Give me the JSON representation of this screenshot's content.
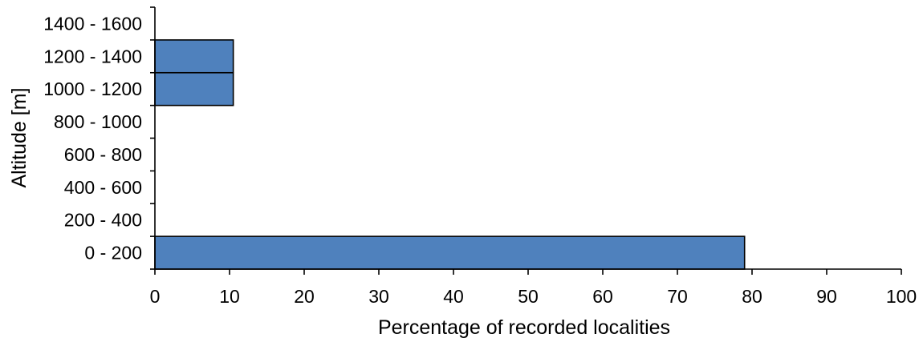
{
  "chart_data": {
    "type": "bar",
    "orientation": "horizontal",
    "categories": [
      "0 - 200",
      "200 - 400",
      "400 - 600",
      "600 - 800",
      "800 - 1000",
      "1000 - 1200",
      "1200 - 1400",
      "1400 - 1600"
    ],
    "values": [
      79,
      0,
      0,
      0,
      0,
      10.5,
      10.5,
      0
    ],
    "xlabel": "Percentage of recorded localities",
    "ylabel": "Altitude [m]",
    "xlim": [
      0,
      100
    ],
    "xticks": [
      0,
      10,
      20,
      30,
      40,
      50,
      60,
      70,
      80,
      90,
      100
    ],
    "grid": false,
    "legend": "none",
    "colors": {
      "bar_fill": "#4f81bd",
      "bar_stroke": "#000000",
      "axis": "#000000"
    }
  }
}
